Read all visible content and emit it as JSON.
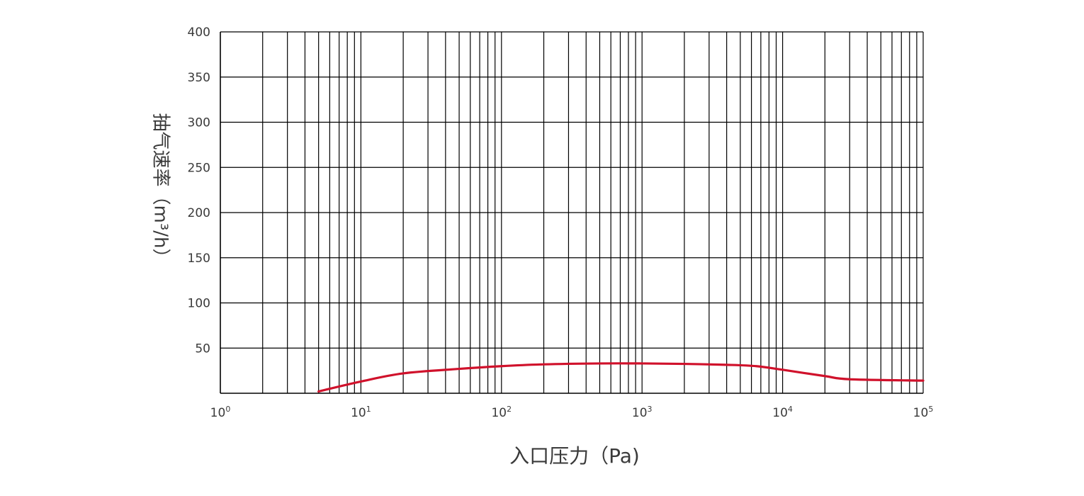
{
  "chart_data": {
    "type": "line",
    "x_scale": "log",
    "xlabel": "入口压力（Pa)",
    "ylabel": "抽气速率（m³/h）",
    "xlim": [
      1,
      100000
    ],
    "ylim": [
      0,
      400
    ],
    "x_ticks": [
      {
        "base": "10",
        "exp": "0",
        "value": 1
      },
      {
        "base": "10",
        "exp": "1",
        "value": 10
      },
      {
        "base": "10",
        "exp": "2",
        "value": 100
      },
      {
        "base": "10",
        "exp": "3",
        "value": 1000
      },
      {
        "base": "10",
        "exp": "4",
        "value": 10000
      },
      {
        "base": "10",
        "exp": "5",
        "value": 100000
      }
    ],
    "y_ticks": [
      "50",
      "100",
      "150",
      "200",
      "250",
      "300",
      "350",
      "400"
    ],
    "series": [
      {
        "color": "#d0112b",
        "x": [
          5,
          10,
          20,
          50,
          100,
          200,
          500,
          1000,
          2000,
          4000,
          6500,
          10000,
          20000,
          30000,
          100000
        ],
        "y": [
          2,
          13,
          22,
          27,
          30,
          32,
          33,
          33,
          32.5,
          31.5,
          30,
          26,
          19,
          15.5,
          14
        ]
      }
    ],
    "grid": true,
    "legend": "none"
  },
  "colors": {
    "grid": "#000000",
    "curve": "#d0112b",
    "text": "#3a3a3a"
  }
}
